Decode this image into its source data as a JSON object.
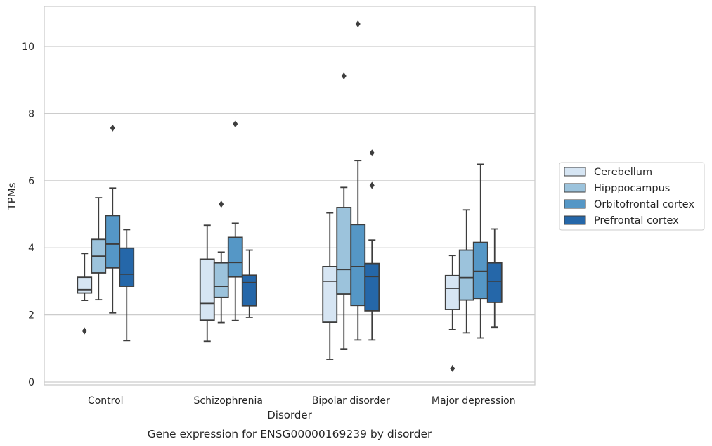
{
  "chart_data": {
    "type": "box",
    "caption": "Gene expression for ENSG00000169239 by disorder",
    "xlabel": "Disorder",
    "ylabel": "TPMs",
    "ylim": [
      -0.1,
      11.2
    ],
    "yticks": [
      0,
      2,
      4,
      6,
      8,
      10
    ],
    "grid": "horizontal",
    "legend_position": "outside-right",
    "categories": [
      "Control",
      "Schizophrenia",
      "Bipolar disorder",
      "Major depression"
    ],
    "series": [
      {
        "name": "Cerebellum",
        "color": "#d6e5f3",
        "boxes": [
          {
            "whisker_low": 2.43,
            "q1": 2.65,
            "median": 2.75,
            "q3": 3.12,
            "whisker_high": 3.83,
            "outliers": [
              1.52
            ]
          },
          {
            "whisker_low": 1.21,
            "q1": 1.84,
            "median": 2.34,
            "q3": 3.66,
            "whisker_high": 4.67,
            "outliers": []
          },
          {
            "whisker_low": 0.67,
            "q1": 1.78,
            "median": 3.0,
            "q3": 3.44,
            "whisker_high": 5.04,
            "outliers": []
          },
          {
            "whisker_low": 1.57,
            "q1": 2.16,
            "median": 2.79,
            "q3": 3.17,
            "whisker_high": 3.77,
            "outliers": [
              0.4
            ]
          }
        ]
      },
      {
        "name": "Hipppocampus",
        "color": "#9cc3dc",
        "boxes": [
          {
            "whisker_low": 2.45,
            "q1": 3.25,
            "median": 3.75,
            "q3": 4.25,
            "whisker_high": 5.49,
            "outliers": []
          },
          {
            "whisker_low": 1.77,
            "q1": 2.52,
            "median": 2.85,
            "q3": 3.55,
            "whisker_high": 3.87,
            "outliers": [
              5.3
            ]
          },
          {
            "whisker_low": 0.98,
            "q1": 2.62,
            "median": 3.35,
            "q3": 5.2,
            "whisker_high": 5.8,
            "outliers": [
              9.12
            ]
          },
          {
            "whisker_low": 1.46,
            "q1": 2.44,
            "median": 3.11,
            "q3": 3.93,
            "whisker_high": 5.13,
            "outliers": []
          }
        ]
      },
      {
        "name": "Orbitofrontal cortex",
        "color": "#5597c6",
        "boxes": [
          {
            "whisker_low": 2.06,
            "q1": 3.4,
            "median": 4.11,
            "q3": 4.96,
            "whisker_high": 5.78,
            "outliers": [
              7.57
            ]
          },
          {
            "whisker_low": 1.83,
            "q1": 3.13,
            "median": 3.56,
            "q3": 4.31,
            "whisker_high": 4.73,
            "outliers": [
              7.69
            ]
          },
          {
            "whisker_low": 1.25,
            "q1": 2.28,
            "median": 3.44,
            "q3": 4.69,
            "whisker_high": 6.6,
            "outliers": [
              10.67
            ]
          },
          {
            "whisker_low": 1.31,
            "q1": 2.49,
            "median": 3.3,
            "q3": 4.16,
            "whisker_high": 6.49,
            "outliers": []
          }
        ]
      },
      {
        "name": "Prefrontal cortex",
        "color": "#2567a9",
        "boxes": [
          {
            "whisker_low": 1.23,
            "q1": 2.85,
            "median": 3.21,
            "q3": 3.99,
            "whisker_high": 4.54,
            "outliers": []
          },
          {
            "whisker_low": 1.93,
            "q1": 2.27,
            "median": 2.96,
            "q3": 3.18,
            "whisker_high": 3.93,
            "outliers": []
          },
          {
            "whisker_low": 1.25,
            "q1": 2.12,
            "median": 3.14,
            "q3": 3.53,
            "whisker_high": 4.23,
            "outliers": [
              5.86,
              6.83
            ]
          },
          {
            "whisker_low": 1.63,
            "q1": 2.37,
            "median": 3.0,
            "q3": 3.55,
            "whisker_high": 4.56,
            "outliers": []
          }
        ]
      }
    ]
  }
}
